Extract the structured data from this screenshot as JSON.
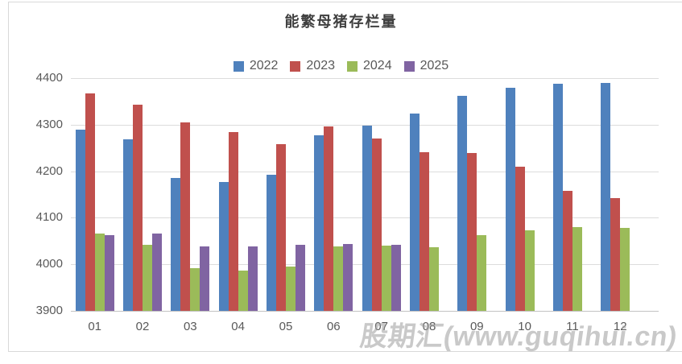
{
  "watermark": "股期汇(www.guqihui.cn)",
  "chart_data": {
    "type": "bar",
    "title": "能繁母猪存栏量",
    "xlabel": "",
    "ylabel": "",
    "ylim": [
      3900,
      4400
    ],
    "yticks": [
      3900,
      4000,
      4100,
      4200,
      4300,
      4400
    ],
    "grid": true,
    "legend_position": "top",
    "categories": [
      "01",
      "02",
      "03",
      "04",
      "05",
      "06",
      "07",
      "08",
      "09",
      "10",
      "11",
      "12"
    ],
    "series": [
      {
        "name": "2022",
        "color": "#4F81BD",
        "values": [
          4290,
          4268,
          4185,
          4177,
          4192,
          4277,
          4298,
          4324,
          4362,
          4379,
          4388,
          4390
        ]
      },
      {
        "name": "2023",
        "color": "#C0504D",
        "values": [
          4367,
          4343,
          4305,
          4284,
          4258,
          4296,
          4271,
          4241,
          4240,
          4210,
          4158,
          4142
        ]
      },
      {
        "name": "2024",
        "color": "#9BBB59",
        "values": [
          4067,
          4042,
          3992,
          3986,
          3996,
          4038,
          4041,
          4036,
          4062,
          4073,
          4080,
          4078
        ]
      },
      {
        "name": "2025",
        "color": "#8064A2",
        "values": [
          4062,
          4066,
          4039,
          4038,
          4042,
          4043,
          4042,
          null,
          null,
          null,
          null,
          null
        ]
      }
    ]
  }
}
